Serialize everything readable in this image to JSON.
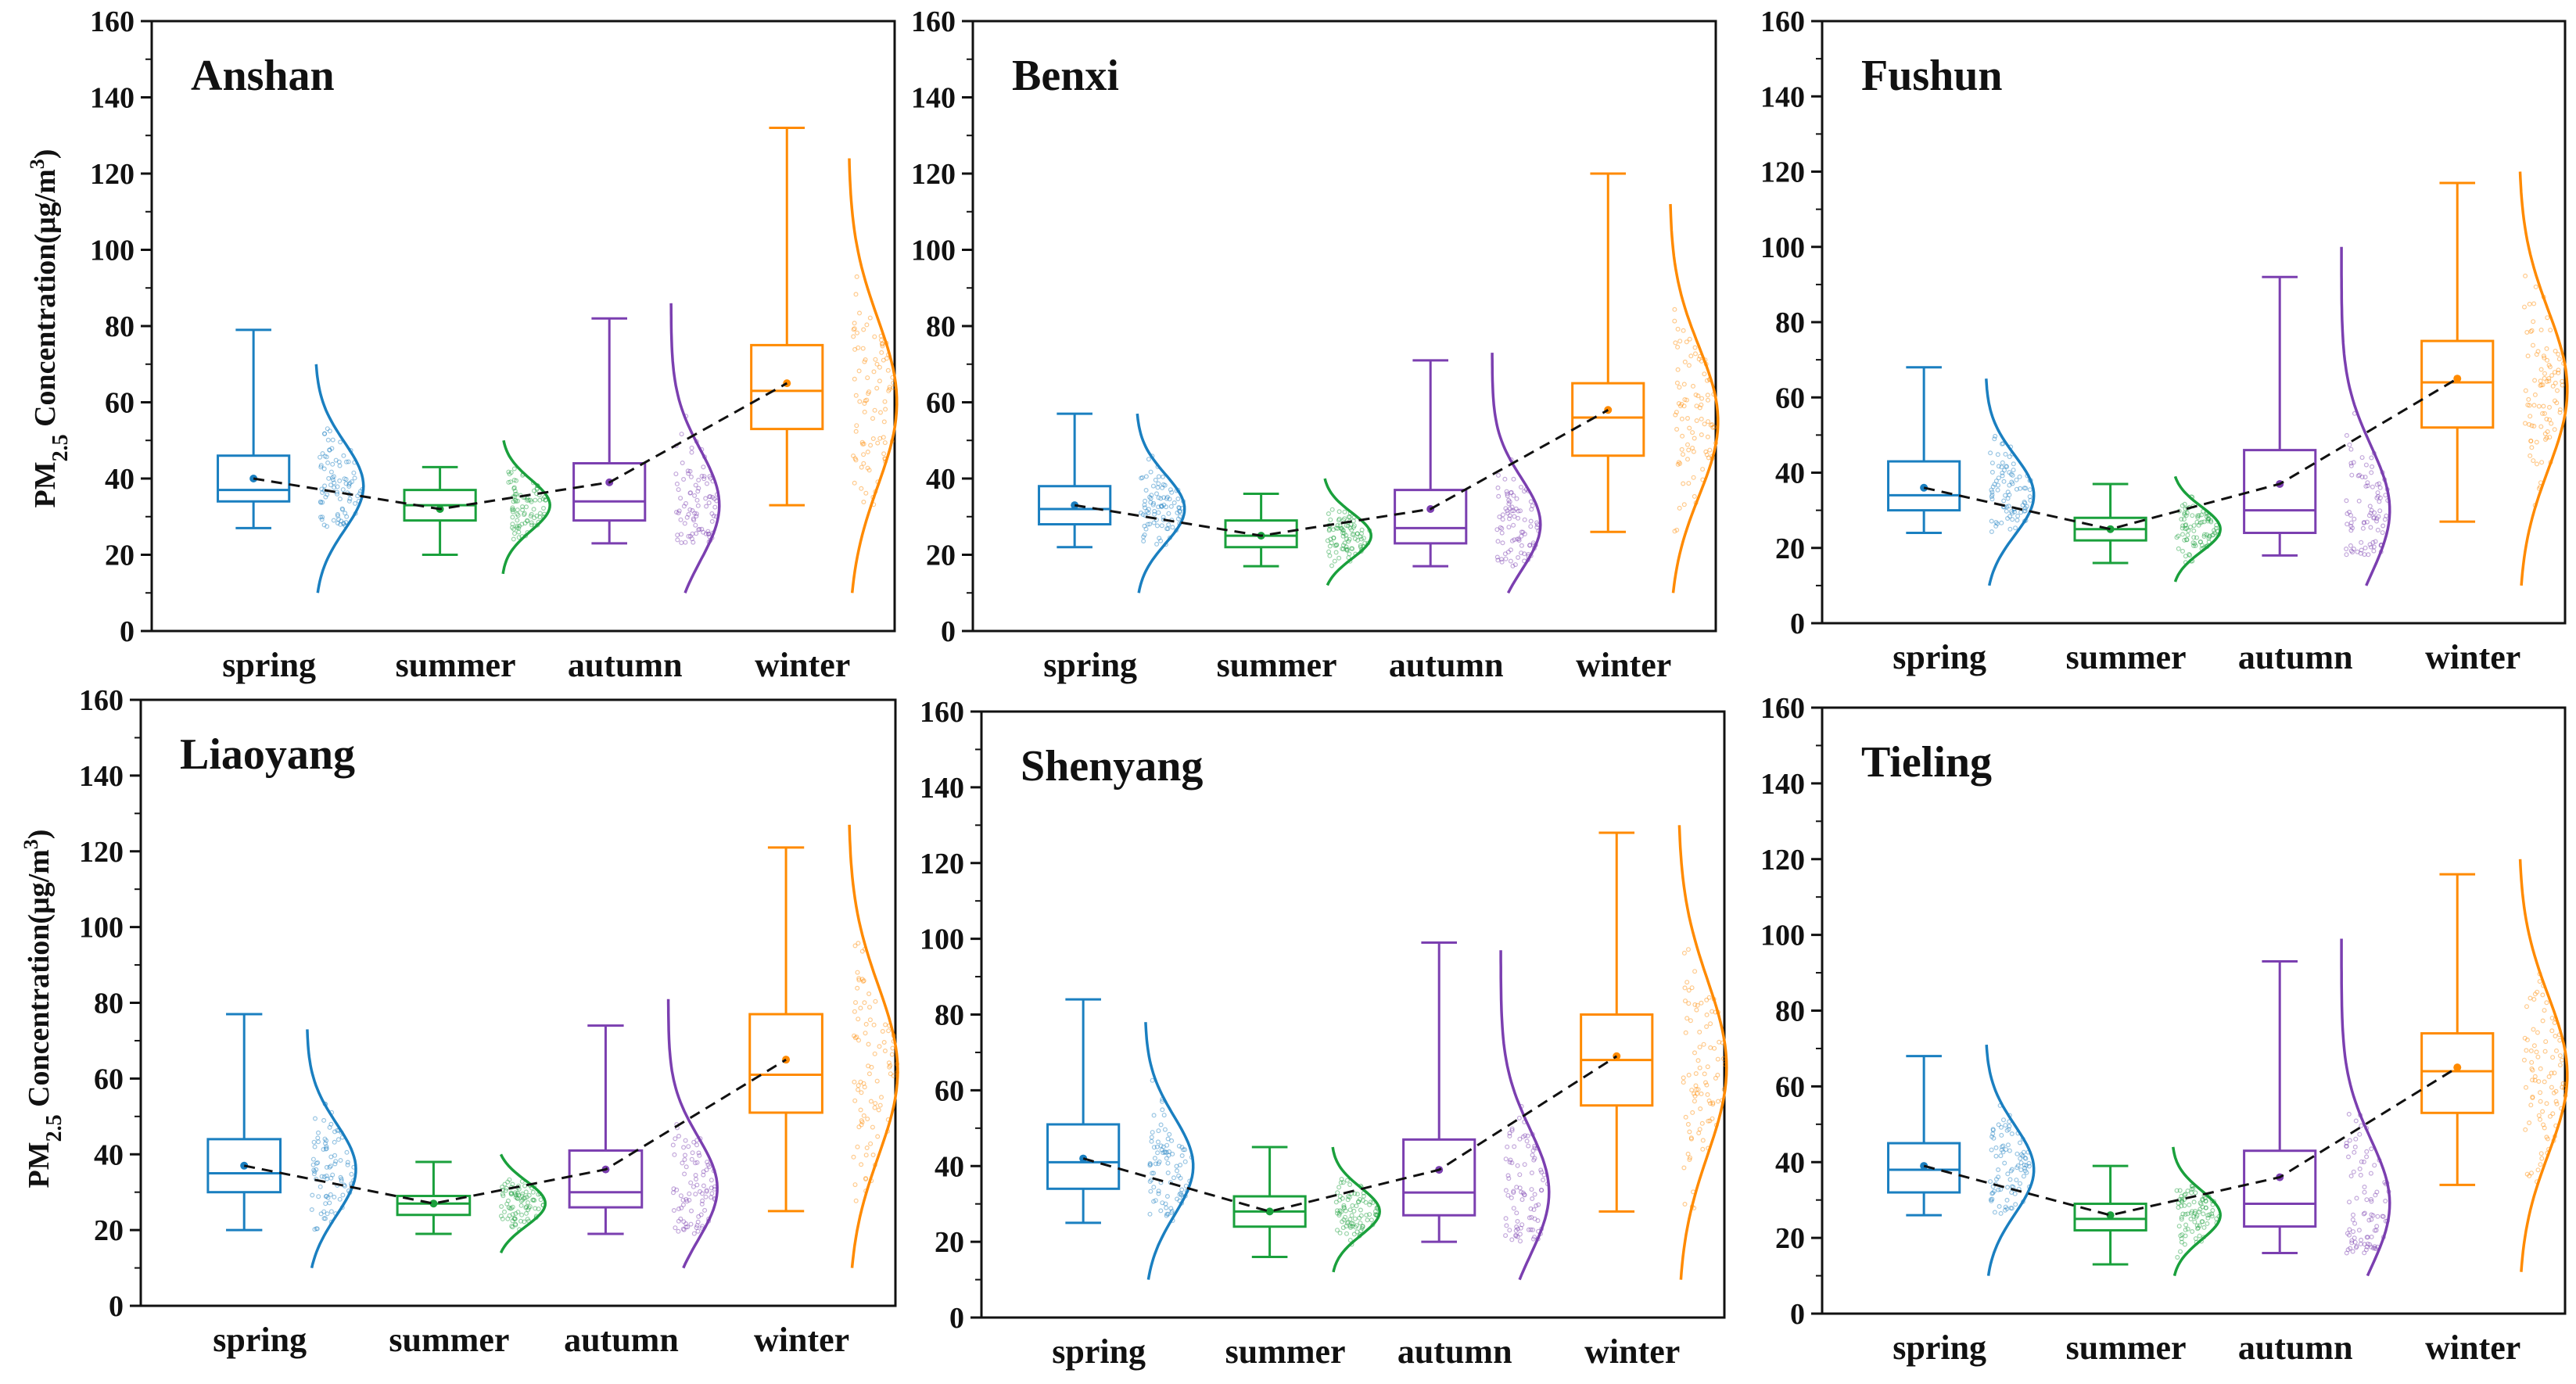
{
  "chart_data": {
    "type": "box",
    "title": "",
    "ylabel_main": "PM",
    "ylabel_sub": "2.5",
    "ylabel_tail": " Concentration(μg/m",
    "ylabel_sup": "3",
    "ylabel_end": ")",
    "ylim": [
      0,
      160
    ],
    "yticks": [
      "0",
      "20",
      "40",
      "60",
      "80",
      "100",
      "120",
      "140",
      "160"
    ],
    "categories": [
      "spring",
      "summer",
      "autumn",
      "winter"
    ],
    "colors": {
      "spring": "#1a7fc0",
      "summer": "#1aa03c",
      "autumn": "#7b3fb0",
      "winter": "#ff8a00",
      "trend": "#111111"
    },
    "panels": [
      {
        "name": "Anshan",
        "stats": [
          {
            "min": 27,
            "q1": 34,
            "median": 37,
            "q3": 46,
            "max": 79,
            "mean": 40,
            "kde_min": 10,
            "kde_max": 70,
            "kde_mode": 38
          },
          {
            "min": 20,
            "q1": 29,
            "median": 33,
            "q3": 37,
            "max": 43,
            "mean": 32,
            "kde_min": 15,
            "kde_max": 50,
            "kde_mode": 33
          },
          {
            "min": 23,
            "q1": 29,
            "median": 34,
            "q3": 44,
            "max": 82,
            "mean": 39,
            "kde_min": 10,
            "kde_max": 86,
            "kde_mode": 33
          },
          {
            "min": 33,
            "q1": 53,
            "median": 63,
            "q3": 75,
            "max": 132,
            "mean": 65,
            "kde_min": 10,
            "kde_max": 124,
            "kde_mode": 60
          }
        ]
      },
      {
        "name": "Benxi",
        "stats": [
          {
            "min": 22,
            "q1": 28,
            "median": 32,
            "q3": 38,
            "max": 57,
            "mean": 33,
            "kde_min": 10,
            "kde_max": 57,
            "kde_mode": 32
          },
          {
            "min": 17,
            "q1": 22,
            "median": 25,
            "q3": 29,
            "max": 36,
            "mean": 25,
            "kde_min": 12,
            "kde_max": 40,
            "kde_mode": 25
          },
          {
            "min": 17,
            "q1": 23,
            "median": 27,
            "q3": 37,
            "max": 71,
            "mean": 32,
            "kde_min": 10,
            "kde_max": 73,
            "kde_mode": 28
          },
          {
            "min": 26,
            "q1": 46,
            "median": 56,
            "q3": 65,
            "max": 120,
            "mean": 58,
            "kde_min": 10,
            "kde_max": 112,
            "kde_mode": 55
          }
        ]
      },
      {
        "name": "Fushun",
        "stats": [
          {
            "min": 24,
            "q1": 30,
            "median": 34,
            "q3": 43,
            "max": 68,
            "mean": 36,
            "kde_min": 10,
            "kde_max": 65,
            "kde_mode": 34
          },
          {
            "min": 16,
            "q1": 22,
            "median": 25,
            "q3": 28,
            "max": 37,
            "mean": 25,
            "kde_min": 11,
            "kde_max": 39,
            "kde_mode": 25
          },
          {
            "min": 18,
            "q1": 24,
            "median": 30,
            "q3": 46,
            "max": 92,
            "mean": 37,
            "kde_min": 10,
            "kde_max": 100,
            "kde_mode": 30
          },
          {
            "min": 27,
            "q1": 52,
            "median": 64,
            "q3": 75,
            "max": 117,
            "mean": 65,
            "kde_min": 10,
            "kde_max": 120,
            "kde_mode": 62
          }
        ]
      },
      {
        "name": "Liaoyang",
        "stats": [
          {
            "min": 20,
            "q1": 30,
            "median": 35,
            "q3": 44,
            "max": 77,
            "mean": 37,
            "kde_min": 10,
            "kde_max": 73,
            "kde_mode": 36
          },
          {
            "min": 19,
            "q1": 24,
            "median": 27,
            "q3": 29,
            "max": 38,
            "mean": 27,
            "kde_min": 14,
            "kde_max": 40,
            "kde_mode": 27
          },
          {
            "min": 19,
            "q1": 26,
            "median": 30,
            "q3": 41,
            "max": 74,
            "mean": 36,
            "kde_min": 10,
            "kde_max": 81,
            "kde_mode": 31
          },
          {
            "min": 25,
            "q1": 51,
            "median": 61,
            "q3": 77,
            "max": 121,
            "mean": 65,
            "kde_min": 10,
            "kde_max": 127,
            "kde_mode": 62
          }
        ]
      },
      {
        "name": "Shenyang",
        "stats": [
          {
            "min": 25,
            "q1": 34,
            "median": 41,
            "q3": 51,
            "max": 84,
            "mean": 42,
            "kde_min": 10,
            "kde_max": 78,
            "kde_mode": 40
          },
          {
            "min": 16,
            "q1": 24,
            "median": 28,
            "q3": 32,
            "max": 45,
            "mean": 28,
            "kde_min": 12,
            "kde_max": 45,
            "kde_mode": 28
          },
          {
            "min": 20,
            "q1": 27,
            "median": 33,
            "q3": 47,
            "max": 99,
            "mean": 39,
            "kde_min": 10,
            "kde_max": 97,
            "kde_mode": 33
          },
          {
            "min": 28,
            "q1": 56,
            "median": 68,
            "q3": 80,
            "max": 128,
            "mean": 69,
            "kde_min": 10,
            "kde_max": 130,
            "kde_mode": 66
          }
        ]
      },
      {
        "name": "Tieling",
        "stats": [
          {
            "min": 26,
            "q1": 32,
            "median": 38,
            "q3": 45,
            "max": 68,
            "mean": 39,
            "kde_min": 10,
            "kde_max": 71,
            "kde_mode": 38
          },
          {
            "min": 13,
            "q1": 22,
            "median": 25,
            "q3": 29,
            "max": 39,
            "mean": 26,
            "kde_min": 10,
            "kde_max": 44,
            "kde_mode": 26
          },
          {
            "min": 16,
            "q1": 23,
            "median": 29,
            "q3": 43,
            "max": 93,
            "mean": 36,
            "kde_min": 10,
            "kde_max": 99,
            "kde_mode": 29
          },
          {
            "min": 34,
            "q1": 53,
            "median": 64,
            "q3": 74,
            "max": 116,
            "mean": 65,
            "kde_min": 11,
            "kde_max": 120,
            "kde_mode": 63
          }
        ]
      }
    ]
  }
}
